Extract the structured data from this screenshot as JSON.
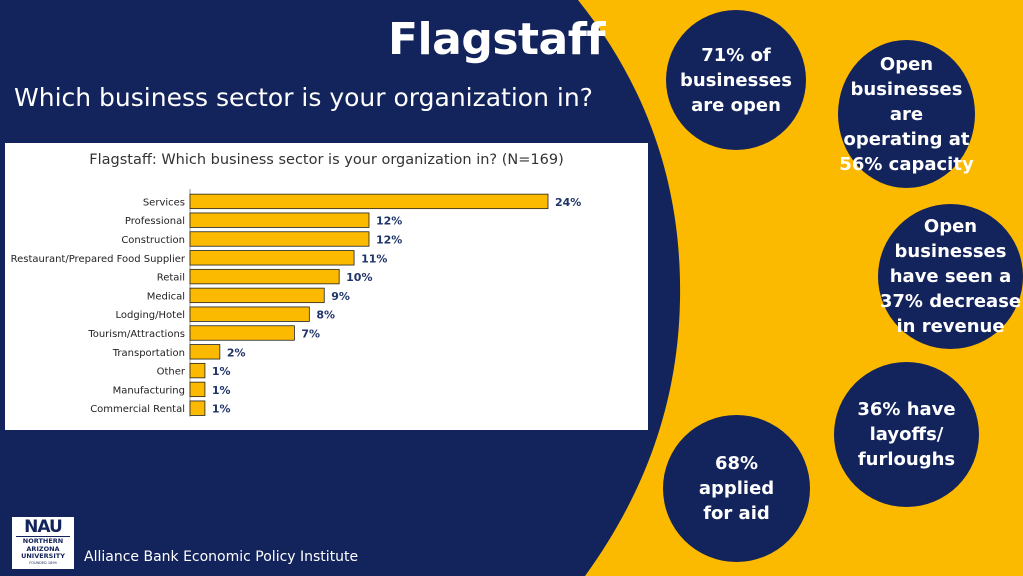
{
  "header": {
    "title": "Flagstaff",
    "subtitle": "Which business sector is your organization in?"
  },
  "colors": {
    "navy": "#13235B",
    "gold": "#FBB900",
    "bar_fill": "#FBB900",
    "bar_stroke": "#222222",
    "value_label": "#1F3468"
  },
  "chart_data": {
    "type": "bar",
    "orientation": "horizontal",
    "title": "Flagstaff: Which business sector is your organization in? (N=169)",
    "categories": [
      "Services",
      "Professional",
      "Construction",
      "Restaurant/Prepared Food Supplier",
      "Retail",
      "Medical",
      "Lodging/Hotel",
      "Tourism/Attractions",
      "Transportation",
      "Other",
      "Manufacturing",
      "Commercial Rental"
    ],
    "values": [
      24,
      12,
      12,
      11,
      10,
      9,
      8,
      7,
      2,
      1,
      1,
      1
    ],
    "value_labels": [
      "24%",
      "12%",
      "12%",
      "11%",
      "10%",
      "9%",
      "8%",
      "7%",
      "2%",
      "1%",
      "1%",
      "1%"
    ],
    "xlabel": "",
    "ylabel": "",
    "xlim": [
      0,
      25
    ],
    "grid": false,
    "legend": "none"
  },
  "stats": [
    {
      "text": "71% of businesses are open",
      "lines": [
        "71% of",
        "businesses",
        "are open"
      ]
    },
    {
      "text": "Open businesses are operating at 56% capacity",
      "lines": [
        "Open",
        "businesses are",
        "operating at",
        "56% capacity"
      ]
    },
    {
      "text": "Open businesses have seen a 37% decrease in revenue",
      "lines": [
        "Open",
        "businesses",
        "have seen a",
        "37% decrease",
        "in revenue"
      ]
    },
    {
      "text": "36% have layoffs/ furloughs",
      "lines": [
        "36% have",
        "layoffs/",
        "furloughs"
      ]
    },
    {
      "text": "68% applied for aid",
      "lines": [
        "68%",
        "applied",
        "for aid"
      ]
    }
  ],
  "footer": {
    "institute": "Alliance Bank Economic Policy Institute",
    "logo": {
      "mark": "NAU",
      "line1": "NORTHERN",
      "line2": "ARIZONA",
      "line3": "UNIVERSITY",
      "founded": "FOUNDED 1899"
    }
  }
}
